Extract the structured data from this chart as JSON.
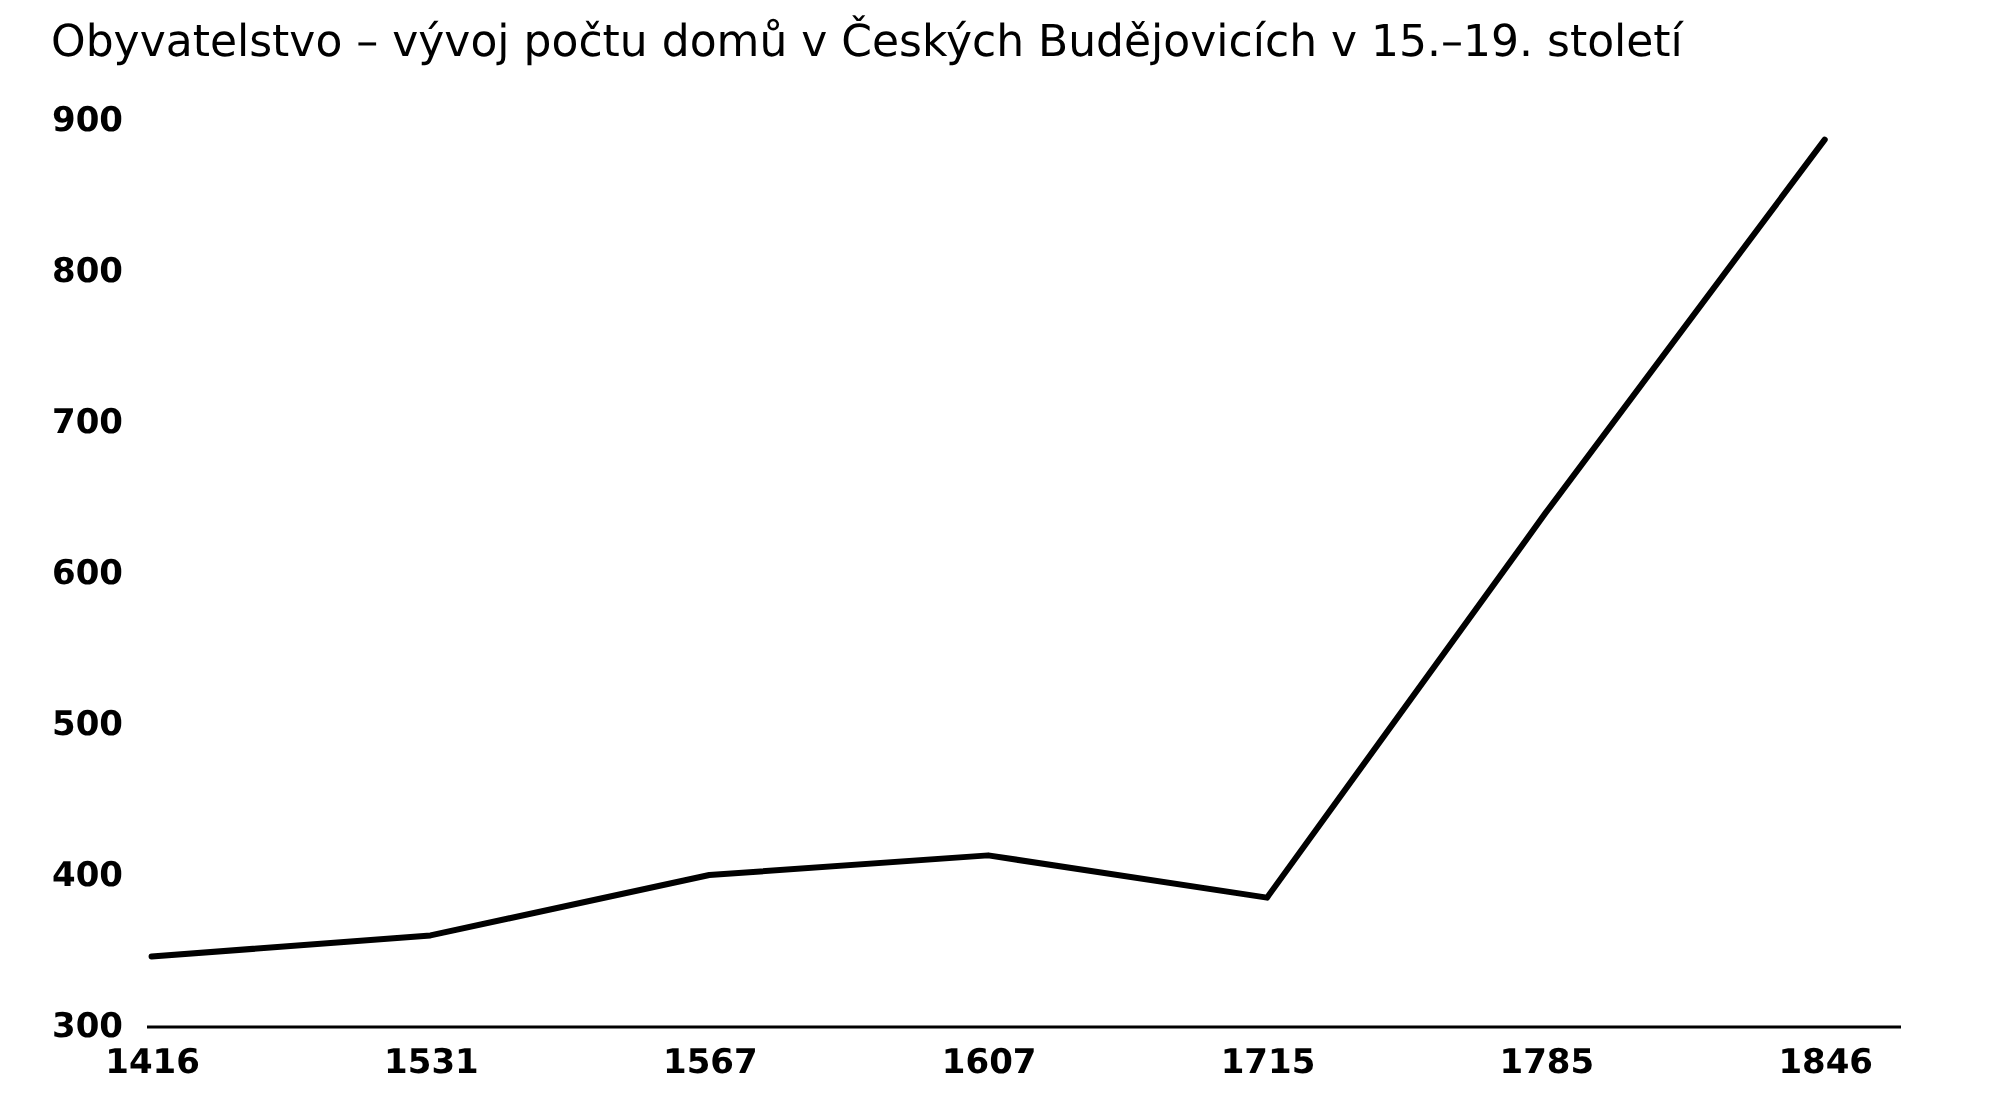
{
  "chart_data": {
    "type": "line",
    "title": "Obyvatelstvo – vývoj počtu domů v Českých Budějovicích v 15.–19. století",
    "categories": [
      "1416",
      "1531",
      "1567",
      "1607",
      "1715",
      "1785",
      "1846"
    ],
    "series": [
      {
        "color": "#000000",
        "values": [
          346,
          360,
          400,
          413,
          385,
          640,
          887
        ]
      }
    ],
    "ylim": [
      300,
      900
    ],
    "yticks": [
      300,
      400,
      500,
      600,
      700,
      800,
      900
    ],
    "grid": false,
    "legend": false,
    "marker": "none",
    "line_style": "solid"
  }
}
